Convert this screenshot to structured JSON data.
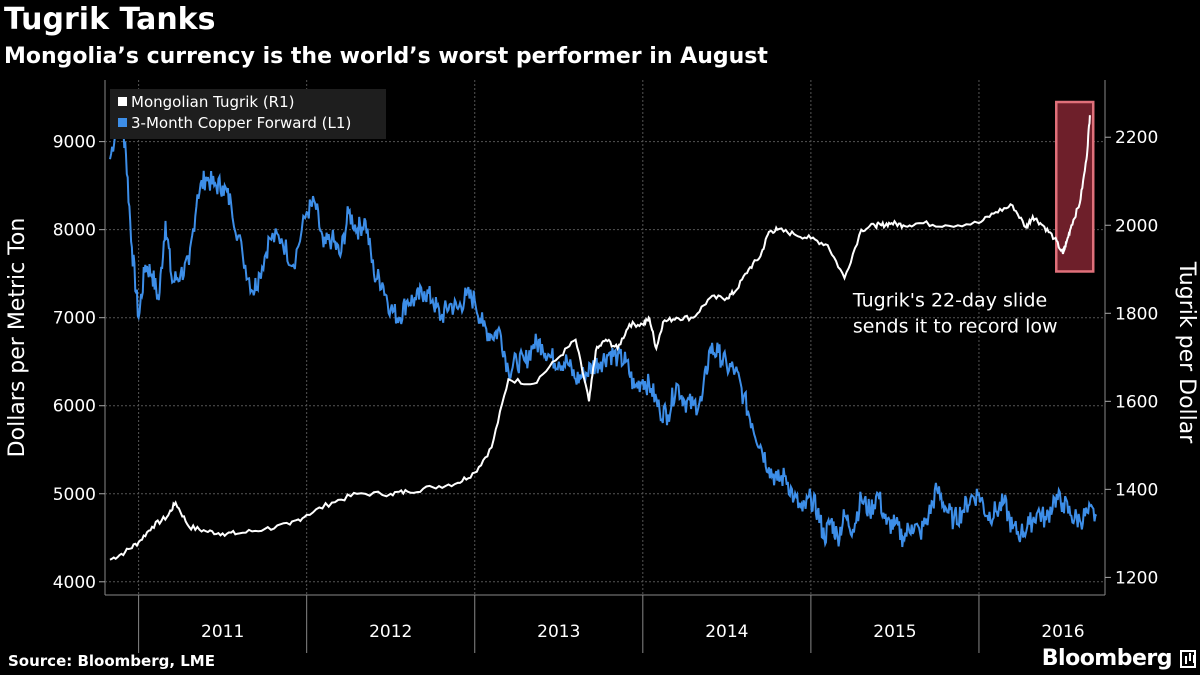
{
  "header": {
    "title": "Tugrik Tanks",
    "subtitle": "Mongolia’s currency is the world’s worst performer in August"
  },
  "footer": {
    "source": "Source: Bloomberg, LME",
    "brand": "Bloomberg"
  },
  "colors": {
    "background": "#000000",
    "tugrik": "#ffffff",
    "copper": "#3d8ee8",
    "highlight_fill": "#6e1f2a",
    "highlight_stroke": "#e0707a",
    "grid": "#555555"
  },
  "chart_data": {
    "type": "line",
    "title": "Tugrik Tanks",
    "subtitle": "Mongolia’s currency is the world’s worst performer in August",
    "x_ticks": [
      "2011",
      "2012",
      "2013",
      "2014",
      "2015",
      "2016"
    ],
    "x_range": [
      2010.8,
      2016.75
    ],
    "left_axis": {
      "label": "Dollars per Metric Ton",
      "range": [
        3850,
        9700
      ],
      "ticks": [
        4000,
        5000,
        6000,
        7000,
        8000,
        9000
      ]
    },
    "right_axis": {
      "label": "Tugrik per Dollar",
      "range": [
        1160,
        2330
      ],
      "ticks": [
        1200,
        1400,
        1600,
        1800,
        2000,
        2200
      ]
    },
    "grid": true,
    "legend_position": "top-left",
    "series": [
      {
        "name": "Mongolian Tugrik",
        "legend_label": "Mongolian Tugrik  (R1)",
        "axis": "right",
        "color": "#ffffff",
        "x": [
          2010.83,
          2010.92,
          2011.0,
          2011.08,
          2011.17,
          2011.22,
          2011.3,
          2011.4,
          2011.5,
          2011.6,
          2011.75,
          2011.9,
          2012.0,
          2012.15,
          2012.3,
          2012.5,
          2012.6,
          2012.75,
          2012.9,
          2013.0,
          2013.1,
          2013.2,
          2013.35,
          2013.5,
          2013.6,
          2013.68,
          2013.72,
          2013.78,
          2013.85,
          2013.92,
          2014.0,
          2014.04,
          2014.08,
          2014.12,
          2014.2,
          2014.3,
          2014.4,
          2014.5,
          2014.55,
          2014.63,
          2014.7,
          2014.75,
          2014.8,
          2014.9,
          2015.0,
          2015.1,
          2015.2,
          2015.3,
          2015.38,
          2015.42,
          2015.48,
          2015.55,
          2015.65,
          2015.8,
          2016.0,
          2016.1,
          2016.2,
          2016.28,
          2016.32,
          2016.38,
          2016.45,
          2016.5,
          2016.52,
          2016.55,
          2016.6,
          2016.64,
          2016.66
        ],
        "values": [
          1240,
          1258,
          1280,
          1315,
          1338,
          1370,
          1315,
          1305,
          1300,
          1300,
          1310,
          1320,
          1342,
          1370,
          1390,
          1390,
          1395,
          1405,
          1415,
          1438,
          1495,
          1650,
          1640,
          1700,
          1740,
          1600,
          1715,
          1740,
          1720,
          1775,
          1775,
          1788,
          1720,
          1780,
          1790,
          1790,
          1835,
          1835,
          1850,
          1900,
          1930,
          1985,
          1990,
          1980,
          1970,
          1955,
          1880,
          1990,
          2000,
          2000,
          2005,
          2000,
          2005,
          2000,
          2005,
          2030,
          2045,
          1995,
          2020,
          2000,
          1970,
          1935,
          1960,
          2000,
          2050,
          2150,
          2250
        ]
      },
      {
        "name": "3-Month Copper Forward",
        "legend_label": "3-Month Copper Forward (L1)",
        "axis": "left",
        "color": "#3d8ee8",
        "x": [
          2010.83,
          2010.88,
          2010.92,
          2010.96,
          2011.0,
          2011.04,
          2011.08,
          2011.12,
          2011.16,
          2011.2,
          2011.25,
          2011.3,
          2011.35,
          2011.4,
          2011.45,
          2011.5,
          2011.55,
          2011.62,
          2011.68,
          2011.72,
          2011.78,
          2011.85,
          2011.92,
          2012.0,
          2012.05,
          2012.1,
          2012.15,
          2012.2,
          2012.25,
          2012.3,
          2012.35,
          2012.4,
          2012.45,
          2012.5,
          2012.55,
          2012.6,
          2012.65,
          2012.7,
          2012.75,
          2012.8,
          2012.85,
          2012.9,
          2012.95,
          2013.0,
          2013.05,
          2013.1,
          2013.15,
          2013.2,
          2013.25,
          2013.3,
          2013.35,
          2013.4,
          2013.45,
          2013.5,
          2013.55,
          2013.6,
          2013.65,
          2013.7,
          2013.75,
          2013.8,
          2013.85,
          2013.9,
          2013.95,
          2014.0,
          2014.05,
          2014.1,
          2014.15,
          2014.2,
          2014.25,
          2014.3,
          2014.35,
          2014.4,
          2014.45,
          2014.5,
          2014.55,
          2014.6,
          2014.65,
          2014.7,
          2014.75,
          2014.8,
          2014.85,
          2014.9,
          2014.95,
          2015.0,
          2015.04,
          2015.08,
          2015.12,
          2015.16,
          2015.2,
          2015.25,
          2015.3,
          2015.35,
          2015.4,
          2015.45,
          2015.5,
          2015.55,
          2015.6,
          2015.65,
          2015.7,
          2015.75,
          2015.8,
          2015.85,
          2015.9,
          2015.95,
          2016.0,
          2016.05,
          2016.1,
          2016.15,
          2016.2,
          2016.25,
          2016.3,
          2016.35,
          2016.4,
          2016.45,
          2016.5,
          2016.55,
          2016.6,
          2016.65,
          2016.7
        ],
        "values": [
          8800,
          9300,
          9000,
          7800,
          7000,
          7600,
          7500,
          7200,
          8100,
          7400,
          7500,
          7600,
          8400,
          8600,
          8500,
          8500,
          8300,
          7700,
          7300,
          7500,
          7900,
          7900,
          7600,
          8200,
          8300,
          7800,
          7900,
          7700,
          8200,
          8000,
          8100,
          7500,
          7400,
          7100,
          7000,
          7200,
          7200,
          7300,
          7200,
          7000,
          7150,
          7100,
          7250,
          7200,
          6900,
          6800,
          6850,
          6400,
          6500,
          6500,
          6700,
          6700,
          6550,
          6500,
          6500,
          6300,
          6350,
          6450,
          6500,
          6600,
          6550,
          6500,
          6200,
          6300,
          6200,
          5950,
          5900,
          6250,
          6050,
          6000,
          6050,
          6650,
          6600,
          6450,
          6400,
          6100,
          5800,
          5550,
          5300,
          5150,
          5200,
          4950,
          4800,
          4950,
          4800,
          4500,
          4700,
          4500,
          4750,
          4600,
          4950,
          4800,
          5000,
          4650,
          4650,
          4500,
          4650,
          4550,
          4750,
          5050,
          4850,
          4700,
          4800,
          4950,
          5000,
          4750,
          4800,
          4900,
          4600,
          4550,
          4650,
          4800,
          4700,
          4950,
          4900,
          4750,
          4700,
          4780,
          4750
        ]
      }
    ],
    "highlight": {
      "x_range": [
        2016.46,
        2016.68
      ],
      "y_range_right": [
        1895,
        2280
      ]
    },
    "annotation": {
      "text_line1": "Tugrik's 22-day slide",
      "text_line2": "sends it to record low",
      "x": 2015.25,
      "y_right": 1815
    }
  }
}
